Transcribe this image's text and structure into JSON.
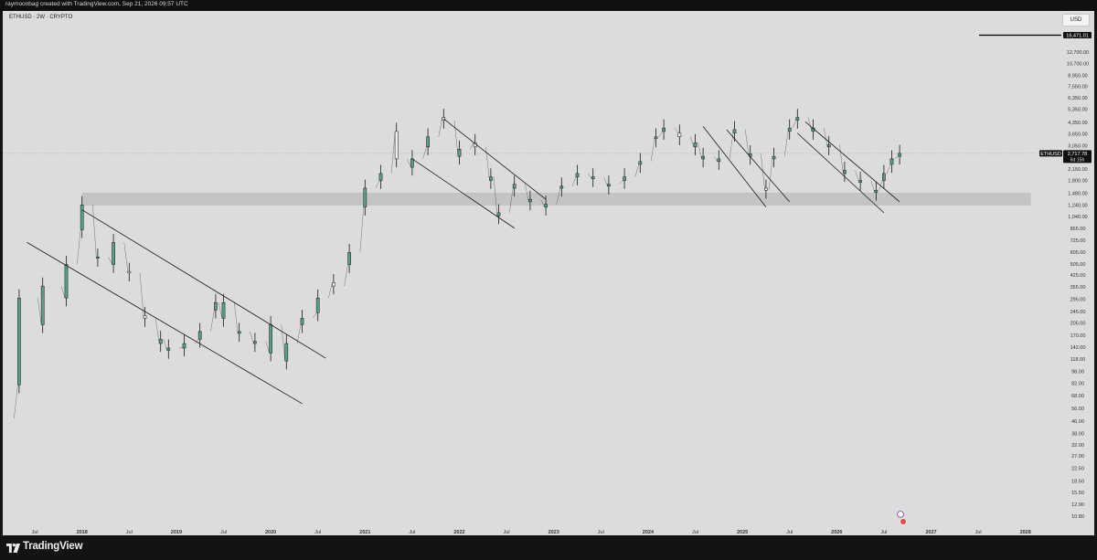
{
  "header": {
    "attribution": "raymoonbag created with TradingView.com, Sep 21, 2026 09:57 UTC"
  },
  "chart_header": {
    "symbol": "ETHUSD · 2W · CRYPTO",
    "currency_button": "USD"
  },
  "price_scale": {
    "labels": [
      "12,700.00",
      "10,700.00",
      "8,950.00",
      "7,550.00",
      "6,350.00",
      "5,350.00",
      "4,350.00",
      "3,650.00",
      "3,050.00",
      "2,150.00",
      "1,800.00",
      "1,480.00",
      "1,240.00",
      "1,040.00",
      "865.00",
      "725.00",
      "605.00",
      "505.00",
      "425.00",
      "355.00",
      "295.00",
      "245.00",
      "205.00",
      "170.00",
      "142.00",
      "118.00",
      "98.00",
      "82.00",
      "68.00",
      "56.00",
      "46.00",
      "38.00",
      "32.00",
      "27.00",
      "22.50",
      "18.50",
      "15.50",
      "12.90",
      "10.80"
    ]
  },
  "markers": {
    "target_price": "16,471.01",
    "current_price": "2,717.78",
    "symbol_tag": "ETHUSD",
    "countdown": "6d 15h"
  },
  "time_axis": {
    "labels": [
      "Jul",
      "2018",
      "Jul",
      "2019",
      "Jul",
      "2020",
      "Jul",
      "2021",
      "Jul",
      "2022",
      "Jul",
      "2023",
      "Jul",
      "2024",
      "Jul",
      "2025",
      "Jul",
      "2026",
      "Jul",
      "2027",
      "Jul",
      "2028"
    ]
  },
  "footer": {
    "brand": "TradingView"
  },
  "colors": {
    "up_candle": "#5a9e87",
    "down_candle": "#ececec",
    "candle_outline": "#1a1a1a",
    "background": "#dcdcdc",
    "support_zone": "#c4c4c4",
    "channel_lines": "#1a1a1a"
  },
  "chart_data": {
    "type": "candlestick",
    "title": "ETHUSD · 2W · CRYPTO",
    "scale": "log",
    "ylim": [
      10,
      16471.01
    ],
    "xlim": [
      "2017-02",
      "2028-03"
    ],
    "grid": false,
    "series": [
      {
        "name": "ETHUSD",
        "points": [
          [
            "2017-02",
            22,
            48
          ],
          [
            "2017-05",
            80,
            300
          ],
          [
            "2017-08",
            200,
            360
          ],
          [
            "2017-11",
            300,
            500
          ],
          [
            "2018-01",
            850,
            1240
          ],
          [
            "2018-03",
            550,
            560
          ],
          [
            "2018-05",
            500,
            700
          ],
          [
            "2018-07",
            450,
            440
          ],
          [
            "2018-09",
            230,
            220
          ],
          [
            "2018-11",
            150,
            160
          ],
          [
            "2018-12",
            135,
            140
          ],
          [
            "2019-02",
            140,
            150
          ],
          [
            "2019-04",
            160,
            180
          ],
          [
            "2019-06",
            250,
            280
          ],
          [
            "2019-07",
            220,
            280
          ],
          [
            "2019-09",
            175,
            180
          ],
          [
            "2019-11",
            150,
            155
          ],
          [
            "2020-01",
            130,
            200
          ],
          [
            "2020-03",
            115,
            150
          ],
          [
            "2020-05",
            200,
            220
          ],
          [
            "2020-07",
            240,
            300
          ],
          [
            "2020-09",
            380,
            360
          ],
          [
            "2020-11",
            500,
            600
          ],
          [
            "2021-01",
            1200,
            1600
          ],
          [
            "2021-03",
            1800,
            2000
          ],
          [
            "2021-05",
            3800,
            2500
          ],
          [
            "2021-07",
            2200,
            2500
          ],
          [
            "2021-09",
            3000,
            3500
          ],
          [
            "2021-11",
            4700,
            4500
          ],
          [
            "2022-01",
            2600,
            2900
          ],
          [
            "2022-03",
            3200,
            3000
          ],
          [
            "2022-05",
            1800,
            1900
          ],
          [
            "2022-06",
            1050,
            1100
          ],
          [
            "2022-08",
            1600,
            1700
          ],
          [
            "2022-10",
            1300,
            1350
          ],
          [
            "2022-12",
            1200,
            1250
          ],
          [
            "2023-02",
            1600,
            1650
          ],
          [
            "2023-04",
            1900,
            2000
          ],
          [
            "2023-06",
            1850,
            1900
          ],
          [
            "2023-08",
            1650,
            1700
          ],
          [
            "2023-10",
            1800,
            1900
          ],
          [
            "2023-12",
            2300,
            2400
          ],
          [
            "2024-02",
            3400,
            3500
          ],
          [
            "2024-03",
            3800,
            4000
          ],
          [
            "2024-05",
            3700,
            3500
          ],
          [
            "2024-07",
            3000,
            3200
          ],
          [
            "2024-08",
            2500,
            2600
          ],
          [
            "2024-10",
            2400,
            2500
          ],
          [
            "2024-12",
            3700,
            3900
          ],
          [
            "2025-02",
            2600,
            2700
          ],
          [
            "2025-04",
            1600,
            1550
          ],
          [
            "2025-05",
            2500,
            2600
          ],
          [
            "2025-07",
            3800,
            4000
          ],
          [
            "2025-08",
            4500,
            4700
          ],
          [
            "2025-10",
            3800,
            4000
          ],
          [
            "2025-12",
            3000,
            3100
          ],
          [
            "2026-02",
            2000,
            2100
          ],
          [
            "2026-04",
            1750,
            1800
          ],
          [
            "2026-06",
            1500,
            1550
          ],
          [
            "2026-07",
            1800,
            2000
          ],
          [
            "2026-08",
            2300,
            2500
          ],
          [
            "2026-09",
            2600,
            2717.78
          ]
        ]
      }
    ],
    "annotations": {
      "support_zone": [
        1240,
        1480
      ],
      "channels": [
        {
          "from": [
            "2018-01",
            1150
          ],
          "to": [
            "2020-08",
            120
          ]
        },
        {
          "from": [
            "2017-06",
            700
          ],
          "to": [
            "2020-05",
            60
          ]
        },
        {
          "from": [
            "2021-11",
            4600
          ],
          "to": [
            "2022-12",
            1350
          ]
        },
        {
          "from": [
            "2021-07",
            2500
          ],
          "to": [
            "2022-08",
            870
          ]
        },
        {
          "from": [
            "2024-08",
            4100
          ],
          "to": [
            "2025-04",
            1200
          ]
        },
        {
          "from": [
            "2024-11",
            3900
          ],
          "to": [
            "2025-07",
            1300
          ]
        },
        {
          "from": [
            "2025-09",
            4400
          ],
          "to": [
            "2026-09",
            1300
          ]
        },
        {
          "from": [
            "2025-08",
            3700
          ],
          "to": [
            "2026-07",
            1100
          ]
        }
      ]
    }
  }
}
